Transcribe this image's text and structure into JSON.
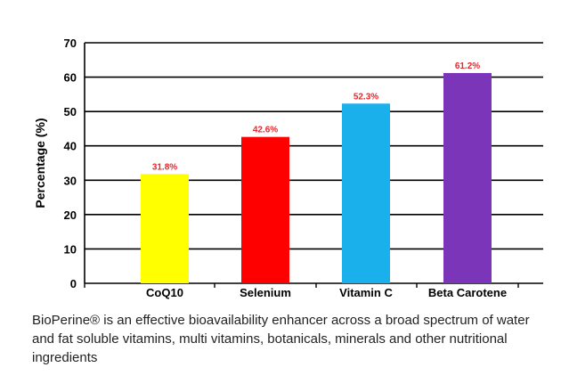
{
  "chart_data": {
    "type": "bar",
    "categories": [
      "CoQ10",
      "Selenium",
      "Vitamin C",
      "Beta Carotene"
    ],
    "values": [
      31.8,
      42.6,
      52.3,
      61.2
    ],
    "data_labels": [
      "31.8%",
      "42.6%",
      "52.3%",
      "61.2%"
    ],
    "colors": [
      "#ffff00",
      "#ff0000",
      "#1ab0ec",
      "#7b35b8"
    ],
    "data_label_color": "#e8262b",
    "title": "",
    "xlabel": "",
    "ylabel": "Percentage (%)",
    "ylim": [
      0,
      70
    ],
    "yticks": [
      0,
      10,
      20,
      30,
      40,
      50,
      60,
      70
    ],
    "grid": true,
    "legend": "none"
  },
  "caption": "BioPerine® is an effective bioavailability enhancer across a broad spectrum of water and fat soluble vitamins, multi vitamins, botanicals, minerals and other nutritional ingredients"
}
